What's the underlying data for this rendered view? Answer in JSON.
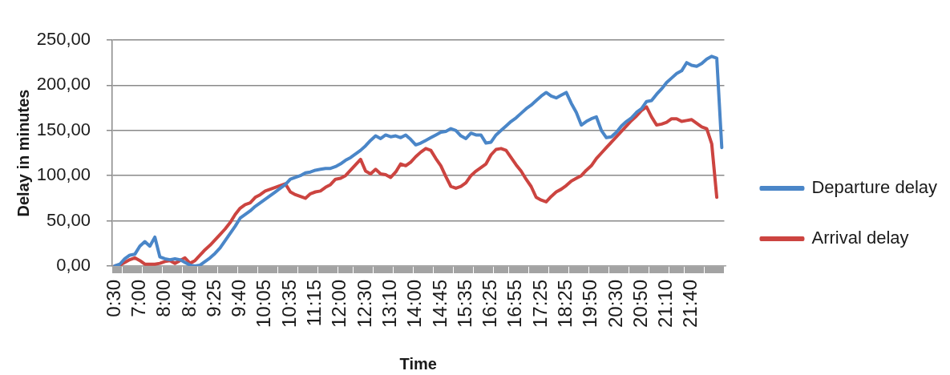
{
  "chart_data": {
    "type": "line",
    "xlabel": "Time",
    "ylabel": "Delay in minutes",
    "categories": [
      "0:30",
      null,
      null,
      null,
      null,
      "7:00",
      null,
      null,
      null,
      null,
      "8:00",
      null,
      null,
      null,
      null,
      "8:40",
      null,
      null,
      null,
      null,
      "9:25",
      null,
      null,
      null,
      null,
      "9:40",
      null,
      null,
      null,
      null,
      "10:05",
      null,
      null,
      null,
      null,
      "10:35",
      null,
      null,
      null,
      null,
      "11:15",
      null,
      null,
      null,
      null,
      "12:00",
      null,
      null,
      null,
      null,
      "12:30",
      null,
      null,
      null,
      null,
      "13:10",
      null,
      null,
      null,
      null,
      "14:00",
      null,
      null,
      null,
      null,
      "14:45",
      null,
      null,
      null,
      null,
      "15:35",
      null,
      null,
      null,
      null,
      "16:25",
      null,
      null,
      null,
      null,
      "16:55",
      null,
      null,
      null,
      null,
      "17:25",
      null,
      null,
      null,
      null,
      "18:25",
      null,
      null,
      null,
      null,
      "19:50",
      null,
      null,
      null,
      null,
      "20:30",
      null,
      null,
      null,
      null,
      "20:50",
      null,
      null,
      null,
      null,
      "21:10",
      null,
      null,
      null,
      null,
      "21:40",
      null,
      null,
      null,
      null,
      null,
      null
    ],
    "series": [
      {
        "name": "Departure delay",
        "color": "#4a86c8",
        "values": [
          0,
          2,
          8,
          12,
          13,
          22,
          27,
          22,
          32,
          10,
          8,
          7,
          8,
          7,
          4,
          1,
          0,
          1,
          5,
          9,
          14,
          20,
          28,
          36,
          44,
          53,
          57,
          61,
          66,
          70,
          74,
          78,
          82,
          86,
          90,
          96,
          98,
          100,
          103,
          104,
          106,
          107,
          108,
          108,
          110,
          113,
          117,
          120,
          124,
          128,
          133,
          139,
          144,
          141,
          145,
          143,
          144,
          142,
          145,
          140,
          134,
          136,
          139,
          142,
          145,
          148,
          149,
          152,
          150,
          144,
          141,
          147,
          145,
          145,
          136,
          137,
          145,
          150,
          155,
          160,
          164,
          169,
          174,
          178,
          183,
          188,
          192,
          188,
          186,
          189,
          192,
          180,
          170,
          156,
          160,
          163,
          165,
          150,
          142,
          143,
          148,
          155,
          160,
          164,
          170,
          174,
          182,
          183,
          190,
          196,
          203,
          208,
          213,
          216,
          225,
          222,
          221,
          224,
          229,
          232,
          230,
          131
        ]
      },
      {
        "name": "Arrival delay",
        "color": "#cc4440",
        "values": [
          0,
          1,
          4,
          7,
          9,
          6,
          2,
          2,
          2,
          3,
          5,
          6,
          3,
          6,
          9,
          3,
          6,
          12,
          18,
          23,
          29,
          35,
          41,
          48,
          57,
          64,
          68,
          70,
          76,
          79,
          83,
          85,
          87,
          89,
          91,
          82,
          79,
          77,
          75,
          80,
          82,
          83,
          87,
          90,
          96,
          97,
          100,
          106,
          112,
          118,
          105,
          102,
          107,
          102,
          101,
          98,
          104,
          113,
          111,
          115,
          121,
          126,
          130,
          128,
          119,
          111,
          99,
          88,
          86,
          88,
          92,
          100,
          105,
          109,
          113,
          123,
          129,
          130,
          128,
          120,
          112,
          105,
          96,
          88,
          76,
          73,
          71,
          77,
          82,
          85,
          89,
          94,
          97,
          100,
          106,
          111,
          119,
          125,
          131,
          137,
          143,
          149,
          155,
          161,
          166,
          172,
          176,
          165,
          156,
          157,
          159,
          163,
          163,
          160,
          161,
          162,
          158,
          154,
          152,
          135,
          76,
          null
        ]
      }
    ],
    "ylim": [
      0,
      250
    ],
    "yticks": [
      {
        "value": 0,
        "label": "0,00"
      },
      {
        "value": 50,
        "label": "50,00"
      },
      {
        "value": 100,
        "label": "100,00"
      },
      {
        "value": 150,
        "label": "150,00"
      },
      {
        "value": 200,
        "label": "200,00"
      },
      {
        "value": 250,
        "label": "250,00"
      }
    ],
    "grid": "y",
    "legend": "right",
    "marker": "none",
    "line_style": "solid"
  }
}
